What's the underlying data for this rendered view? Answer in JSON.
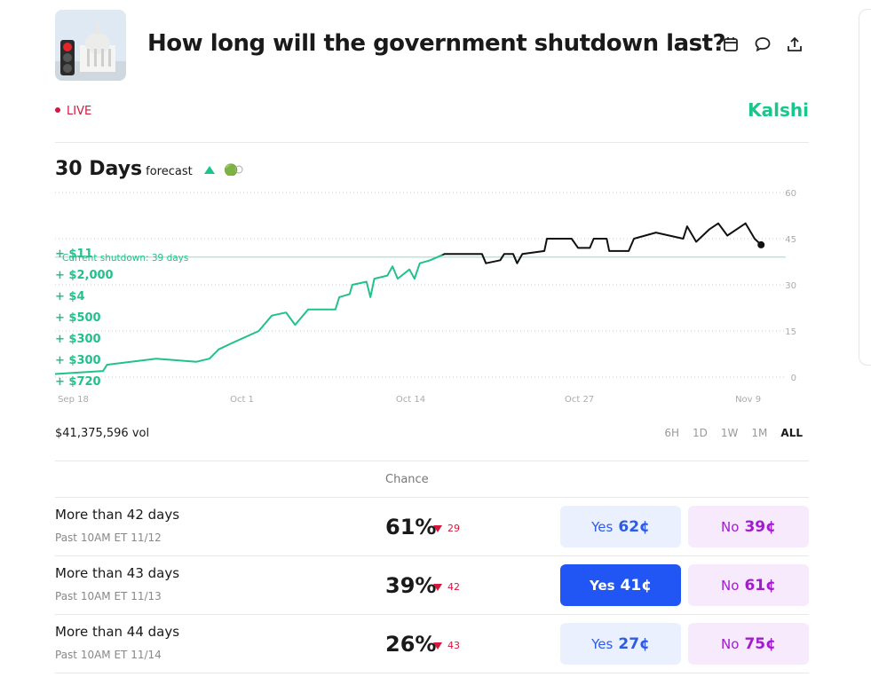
{
  "header": {
    "title": "How long will the government shutdown last?",
    "status": "LIVE",
    "brand": "Kalshi"
  },
  "chart_data": {
    "type": "line",
    "title": "30 Days",
    "subtitle": "forecast",
    "x": [
      -1.4,
      2.3,
      2.6,
      6.4,
      9.5,
      10.5,
      11.2,
      12.2,
      14.3,
      15.3,
      16.4,
      17.1,
      18.1,
      20.2,
      20.5,
      21.3,
      21.5,
      22.6,
      22.9,
      23.2,
      24.2,
      24.6,
      25,
      25.9,
      26.3,
      26.7,
      27.5,
      28.6,
      31.5,
      31.8,
      32.9,
      33.2,
      33.9,
      34.2,
      34.6,
      36.3,
      36.5,
      38.4,
      38.9,
      39.8,
      40.1,
      41.1,
      41.3,
      42.8,
      43.2,
      44.9,
      47,
      47.3,
      48,
      49,
      49.7,
      50.4,
      51.8,
      52.5,
      53
    ],
    "values": [
      1,
      2,
      4,
      6,
      5,
      6,
      9,
      11,
      15,
      20,
      21,
      17,
      22,
      22,
      26,
      27,
      30,
      31,
      26,
      32,
      33,
      36,
      32,
      35,
      32,
      37,
      38,
      40,
      40,
      37,
      38,
      40,
      40,
      37,
      40,
      41,
      45,
      45,
      42,
      42,
      45,
      45,
      41,
      41,
      45,
      47,
      45,
      49,
      44,
      48,
      50,
      46,
      50,
      45,
      43
    ],
    "color": "#22c08d",
    "end_color": "#111111",
    "xlim": [
      -1.4,
      54.9
    ],
    "xticks": [
      {
        "value": 0,
        "label": "Sep 18"
      },
      {
        "value": 13,
        "label": "Oct 1"
      },
      {
        "value": 26,
        "label": "Oct 14"
      },
      {
        "value": 39,
        "label": "Oct 27"
      },
      {
        "value": 52,
        "label": "Nov 9"
      }
    ],
    "ylim": [
      0,
      60
    ],
    "yticks": [
      0,
      15,
      30,
      45,
      60
    ],
    "grid": true,
    "annotation": {
      "value": 39,
      "label": "Current shutdown: 39 days"
    },
    "trades": [
      "+ $11",
      "+ $2,000",
      "+ $4",
      "+ $500",
      "+ $300",
      "+ $300",
      "+ $720"
    ]
  },
  "volume": "$41,375,596 vol",
  "ranges": [
    "6H",
    "1D",
    "1W",
    "1M",
    "ALL"
  ],
  "active_range": 4,
  "table": {
    "header": "Chance",
    "rows": [
      {
        "name": "More than 42 days",
        "sub": "Past 10AM ET 11/12",
        "chance": "61%",
        "change": "29",
        "yes": "Yes",
        "yes_price": "62¢",
        "no": "No",
        "no_price": "39¢"
      },
      {
        "name": "More than 43 days",
        "sub": "Past 10AM ET 11/13",
        "chance": "39%",
        "change": "42",
        "yes": "Yes",
        "yes_price": "41¢",
        "no": "No",
        "no_price": "61¢"
      },
      {
        "name": "More than 44 days",
        "sub": "Past 10AM ET 11/14",
        "chance": "26%",
        "change": "43",
        "yes": "Yes",
        "yes_price": "27¢",
        "no": "No",
        "no_price": "75¢"
      }
    ],
    "active_yes": 1
  }
}
